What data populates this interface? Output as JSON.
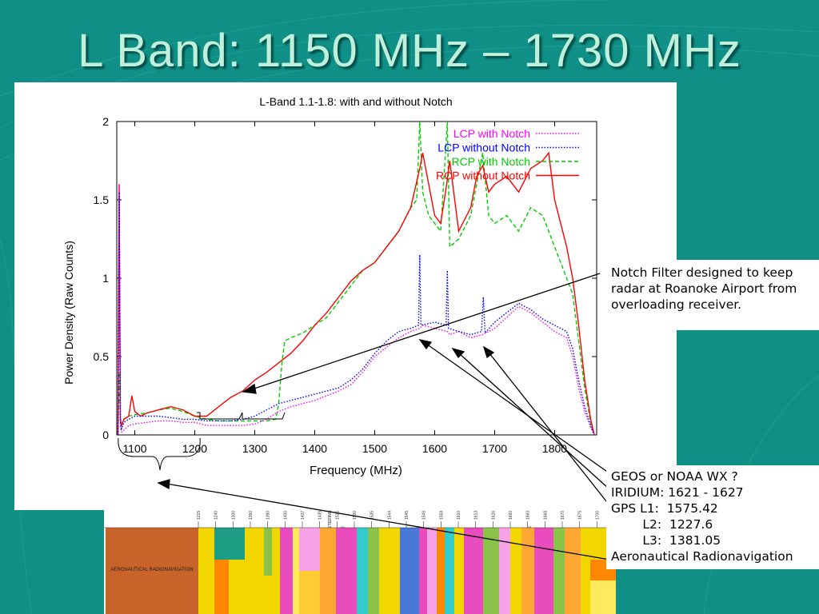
{
  "slide": {
    "title": "L Band:  1150 MHz – 1730 MHz"
  },
  "colors": {
    "background": "#0f8f86",
    "title": "#bff0dc",
    "lcp_with_notch": "#ff00ff",
    "lcp_without_notch": "#0000ff",
    "rcp_with_notch": "#00cc00",
    "rcp_without_notch": "#ff0000"
  },
  "chart_data": {
    "type": "line",
    "title": "L-Band 1.1-1.8: with and without Notch",
    "xlabel": "Frequency (MHz)",
    "ylabel": "Power Density (Raw Counts)",
    "xlim": [
      1070,
      1870
    ],
    "ylim": [
      0,
      2
    ],
    "xticks": [
      "1100",
      "1200",
      "1300",
      "1400",
      "1500",
      "1600",
      "1700",
      "1800"
    ],
    "yticks": [
      "0",
      "0.5",
      "1",
      "1.5",
      "2"
    ],
    "legend_position": "top-right",
    "grid": false,
    "series": [
      {
        "name": "LCP with Notch",
        "style": "dotted",
        "color": "#ff00ff",
        "x": [
          1072,
          1074,
          1076,
          1078,
          1082,
          1090,
          1100,
          1120,
          1140,
          1160,
          1180,
          1200,
          1220,
          1240,
          1260,
          1280,
          1300,
          1320,
          1340,
          1360,
          1380,
          1400,
          1420,
          1440,
          1460,
          1480,
          1500,
          1520,
          1540,
          1560,
          1575,
          1580,
          1600,
          1621,
          1625,
          1640,
          1660,
          1680,
          1700,
          1720,
          1740,
          1760,
          1780,
          1800,
          1820,
          1830,
          1840,
          1850,
          1860,
          1866
        ],
        "y": [
          0.0,
          1.6,
          0.05,
          0.02,
          0.03,
          0.06,
          0.07,
          0.08,
          0.09,
          0.09,
          0.08,
          0.08,
          0.06,
          0.06,
          0.06,
          0.06,
          0.07,
          0.1,
          0.15,
          0.18,
          0.2,
          0.22,
          0.25,
          0.28,
          0.32,
          0.4,
          0.5,
          0.56,
          0.62,
          0.66,
          0.68,
          0.7,
          0.68,
          0.66,
          0.64,
          0.66,
          0.62,
          0.64,
          0.68,
          0.75,
          0.82,
          0.78,
          0.72,
          0.66,
          0.62,
          0.5,
          0.3,
          0.15,
          0.05,
          0.0
        ]
      },
      {
        "name": "LCP without Notch",
        "style": "dotted",
        "color": "#0000ff",
        "x": [
          1072,
          1074,
          1076,
          1078,
          1082,
          1090,
          1100,
          1120,
          1140,
          1160,
          1180,
          1200,
          1220,
          1240,
          1260,
          1280,
          1300,
          1320,
          1340,
          1360,
          1380,
          1400,
          1420,
          1440,
          1460,
          1480,
          1500,
          1520,
          1540,
          1560,
          1573,
          1575,
          1577,
          1600,
          1619,
          1621,
          1623,
          1640,
          1660,
          1678,
          1681,
          1684,
          1700,
          1720,
          1740,
          1760,
          1780,
          1800,
          1820,
          1830,
          1840,
          1850,
          1860,
          1866
        ],
        "y": [
          0.0,
          1.55,
          0.08,
          0.04,
          0.08,
          0.1,
          0.12,
          0.12,
          0.12,
          0.11,
          0.1,
          0.1,
          0.09,
          0.09,
          0.09,
          0.1,
          0.12,
          0.16,
          0.2,
          0.22,
          0.24,
          0.26,
          0.28,
          0.3,
          0.35,
          0.42,
          0.52,
          0.6,
          0.66,
          0.68,
          0.7,
          1.15,
          0.7,
          0.72,
          0.7,
          1.05,
          0.68,
          0.66,
          0.64,
          0.66,
          0.88,
          0.65,
          0.72,
          0.78,
          0.84,
          0.8,
          0.74,
          0.7,
          0.66,
          0.55,
          0.35,
          0.18,
          0.06,
          0.0
        ]
      },
      {
        "name": "RCP with Notch",
        "style": "dashed",
        "color": "#00cc00",
        "x": [
          1072,
          1074,
          1076,
          1078,
          1082,
          1090,
          1100,
          1120,
          1140,
          1160,
          1180,
          1200,
          1220,
          1240,
          1260,
          1280,
          1300,
          1320,
          1335,
          1340,
          1345,
          1350,
          1360,
          1380,
          1400,
          1420,
          1440,
          1460,
          1480,
          1500,
          1520,
          1540,
          1560,
          1570,
          1575,
          1580,
          1590,
          1600,
          1610,
          1621,
          1625,
          1640,
          1660,
          1670,
          1680,
          1690,
          1700,
          1720,
          1740,
          1760,
          1780,
          1800,
          1820,
          1830,
          1840,
          1850,
          1860,
          1866
        ],
        "y": [
          0.0,
          0.4,
          0.1,
          0.06,
          0.1,
          0.12,
          0.13,
          0.14,
          0.16,
          0.17,
          0.15,
          0.12,
          0.1,
          0.09,
          0.09,
          0.09,
          0.09,
          0.09,
          0.1,
          0.2,
          0.45,
          0.6,
          0.62,
          0.65,
          0.7,
          0.75,
          0.85,
          0.95,
          1.05,
          1.1,
          1.2,
          1.3,
          1.45,
          1.5,
          2.0,
          1.55,
          1.4,
          1.35,
          1.3,
          2.0,
          1.2,
          1.25,
          1.4,
          1.6,
          1.8,
          1.4,
          1.35,
          1.4,
          1.3,
          1.45,
          1.4,
          1.2,
          1.0,
          0.9,
          0.6,
          0.3,
          0.08,
          0.0
        ]
      },
      {
        "name": "RCP without Notch",
        "style": "solid",
        "color": "#ff0000",
        "x": [
          1072,
          1074,
          1076,
          1078,
          1082,
          1090,
          1095,
          1100,
          1110,
          1120,
          1140,
          1160,
          1180,
          1200,
          1220,
          1240,
          1260,
          1280,
          1300,
          1320,
          1340,
          1360,
          1380,
          1400,
          1420,
          1440,
          1460,
          1480,
          1500,
          1520,
          1540,
          1560,
          1575,
          1580,
          1590,
          1600,
          1610,
          1620,
          1625,
          1640,
          1660,
          1670,
          1680,
          1690,
          1700,
          1720,
          1740,
          1760,
          1780,
          1790,
          1800,
          1820,
          1830,
          1840,
          1850,
          1860,
          1866
        ],
        "y": [
          0.0,
          1.6,
          0.1,
          0.06,
          0.1,
          0.12,
          0.25,
          0.15,
          0.12,
          0.14,
          0.16,
          0.18,
          0.16,
          0.12,
          0.12,
          0.18,
          0.24,
          0.28,
          0.35,
          0.4,
          0.46,
          0.52,
          0.6,
          0.7,
          0.78,
          0.88,
          0.98,
          1.05,
          1.1,
          1.2,
          1.3,
          1.45,
          1.7,
          1.8,
          1.6,
          1.4,
          1.35,
          1.6,
          1.75,
          1.3,
          1.45,
          1.65,
          1.72,
          1.55,
          1.6,
          1.65,
          1.55,
          1.7,
          1.75,
          1.8,
          1.5,
          1.2,
          1.0,
          0.7,
          0.35,
          0.1,
          0.0
        ]
      }
    ]
  },
  "annotations": {
    "notch_text": "Notch Filter designed to keep radar at Roanoke Airport from overloading receiver.",
    "signals": [
      "GEOS or NOAA WX ?",
      "IRIDIUM: 1621 - 1627",
      "GPS L1:  1575.42",
      "        L2:  1227.6",
      "        L3:  1381.05",
      "Aeronautical Radionavigation"
    ]
  },
  "band_plan": {
    "title_block": "AERONAUTICAL RADIONAVIGATION",
    "tick_labels": [
      "1215",
      "1240",
      "1300",
      "1350",
      "1390",
      "1400",
      "1427",
      "1435",
      "1525",
      "1530",
      "1535",
      "1544",
      "1545",
      "1549.5",
      "1559",
      "1610",
      "1613.8",
      "1626.5",
      "1660",
      "1660.5",
      "1668.4",
      "1670",
      "1675",
      "1700",
      "1710"
    ],
    "column_labels": [
      "RADIOLOCATION",
      "Amateur",
      "Radiolocation",
      "MOBILE",
      "FIXED",
      "MOBILE SATELLITE (E-S)",
      "MOBILE (AERONAUTICAL TELEMETERING)",
      "RADIO ASTRONOMY",
      "METEOROLOGICAL AIDS",
      "Fixed",
      "FIXED",
      "MET. SAT. (s-E)"
    ]
  }
}
